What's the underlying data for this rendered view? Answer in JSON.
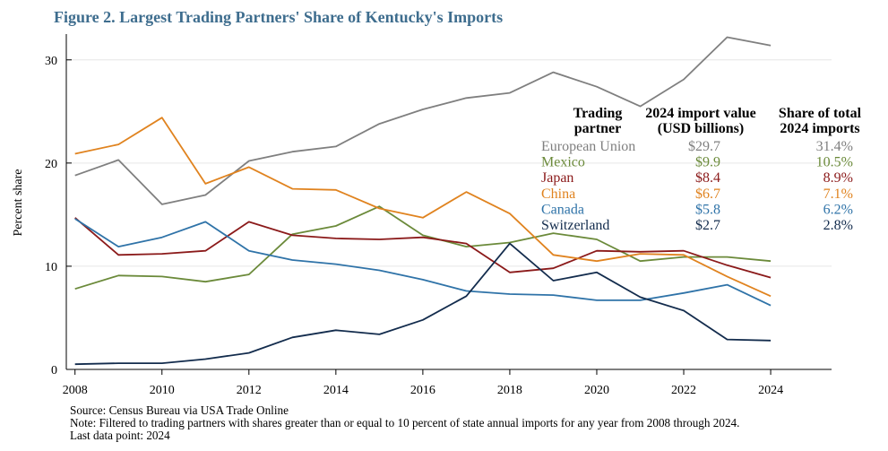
{
  "chart_data": {
    "type": "line",
    "title": "Figure 2. Largest Trading Partners' Share of Kentucky's Imports",
    "xlabel": "",
    "ylabel": "Percent share",
    "xlim": [
      2007.8,
      2025.4
    ],
    "ylim": [
      0,
      32.5
    ],
    "x_ticks": [
      2008,
      2010,
      2012,
      2014,
      2016,
      2018,
      2020,
      2022,
      2024
    ],
    "y_ticks": [
      0,
      10,
      20,
      30
    ],
    "grid": "horizontal",
    "x": [
      2008,
      2009,
      2010,
      2011,
      2012,
      2013,
      2014,
      2015,
      2016,
      2017,
      2018,
      2019,
      2020,
      2021,
      2022,
      2023,
      2024
    ],
    "series": [
      {
        "name": "European Union",
        "color": "#7f7f7f",
        "values": [
          18.8,
          20.3,
          16.0,
          16.9,
          20.2,
          21.1,
          21.6,
          23.8,
          25.2,
          26.3,
          26.8,
          28.8,
          27.4,
          25.5,
          28.1,
          32.2,
          31.4
        ]
      },
      {
        "name": "Mexico",
        "color": "#6b8a3a",
        "values": [
          7.8,
          9.1,
          9.0,
          8.5,
          9.2,
          13.1,
          13.9,
          15.8,
          13.0,
          11.9,
          12.3,
          13.2,
          12.6,
          10.5,
          10.9,
          10.9,
          10.5
        ]
      },
      {
        "name": "Japan",
        "color": "#8b1a1a",
        "values": [
          14.7,
          11.1,
          11.2,
          11.5,
          14.3,
          13.0,
          12.7,
          12.6,
          12.8,
          12.2,
          9.4,
          9.8,
          11.5,
          11.4,
          11.5,
          10.1,
          8.9
        ]
      },
      {
        "name": "China",
        "color": "#e0831f",
        "values": [
          20.9,
          21.8,
          24.4,
          18.0,
          19.6,
          17.5,
          17.4,
          15.6,
          14.7,
          17.2,
          15.1,
          11.1,
          10.5,
          11.2,
          11.1,
          9.0,
          7.1
        ]
      },
      {
        "name": "Canada",
        "color": "#2f73a8",
        "values": [
          14.6,
          11.9,
          12.8,
          14.3,
          11.5,
          10.6,
          10.2,
          9.6,
          8.7,
          7.6,
          7.3,
          7.2,
          6.7,
          6.7,
          7.4,
          8.2,
          6.2
        ]
      },
      {
        "name": "Switzerland",
        "color": "#132c4d",
        "values": [
          0.5,
          0.6,
          0.6,
          1.0,
          1.6,
          3.1,
          3.8,
          3.4,
          4.8,
          7.1,
          12.2,
          8.6,
          9.4,
          7.0,
          5.7,
          2.9,
          2.8
        ]
      }
    ],
    "table": {
      "headers": [
        [
          "Trading",
          "partner"
        ],
        [
          "2024 import value",
          "(USD billions)"
        ],
        [
          "Share of total",
          "2024 imports"
        ]
      ],
      "rows": [
        {
          "partner": "European Union",
          "value": "$29.7",
          "share": "31.4%",
          "color": "#7f7f7f"
        },
        {
          "partner": "Mexico",
          "value": "$9.9",
          "share": "10.5%",
          "color": "#6b8a3a"
        },
        {
          "partner": "Japan",
          "value": "$8.4",
          "share": "8.9%",
          "color": "#8b1a1a"
        },
        {
          "partner": "China",
          "value": "$6.7",
          "share": "7.1%",
          "color": "#e0831f"
        },
        {
          "partner": "Canada",
          "value": "$5.8",
          "share": "6.2%",
          "color": "#2f73a8"
        },
        {
          "partner": "Switzerland",
          "value": "$2.7",
          "share": "2.8%",
          "color": "#132c4d"
        }
      ]
    }
  },
  "notes": {
    "source": "Source: Census Bureau via USA Trade Online",
    "note": "Note: Filtered to trading partners with shares greater than or equal to 10 percent of state annual imports for any year from 2008 through 2024.",
    "last_data_point": "Last data point: 2024"
  }
}
